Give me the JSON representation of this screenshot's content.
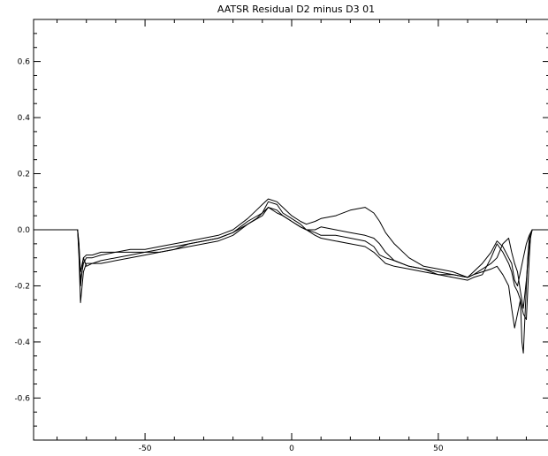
{
  "chart_data": {
    "type": "line",
    "title": "AATSR Residual D2 minus D3 01",
    "xlabel": "",
    "ylabel": "",
    "xlim": [
      -88,
      88
    ],
    "ylim": [
      -0.75,
      0.75
    ],
    "x_ticks_major": [
      -50,
      0,
      50
    ],
    "x_tick_labels": [
      "-50",
      "0",
      "50"
    ],
    "y_ticks_major": [
      -0.6,
      -0.4,
      -0.2,
      0.0,
      0.2,
      0.4,
      0.6
    ],
    "y_tick_labels": [
      "-0.6",
      "-0.4",
      "-0.2",
      "0.0",
      "0.2",
      "0.4",
      "0.6"
    ],
    "grid": false,
    "line_color": "#000000",
    "series": [
      {
        "x": [
          -88,
          -73,
          -72.5,
          -72,
          -71,
          -70,
          -68,
          -65,
          -60,
          -55,
          -50,
          -45,
          -40,
          -35,
          -30,
          -25,
          -20,
          -15,
          -10,
          -8,
          -5,
          -3,
          0,
          3,
          5,
          8,
          10,
          15,
          20,
          25,
          28,
          30,
          32,
          35,
          40,
          45,
          50,
          55,
          60,
          62,
          65,
          68,
          70,
          72,
          74,
          75,
          76,
          77,
          78,
          78.5,
          79,
          80,
          80.5,
          81,
          82,
          88
        ],
        "y": [
          0.0,
          0.0,
          -0.05,
          -0.2,
          -0.1,
          -0.13,
          -0.12,
          -0.11,
          -0.1,
          -0.09,
          -0.08,
          -0.08,
          -0.07,
          -0.06,
          -0.05,
          -0.04,
          -0.02,
          0.02,
          0.05,
          0.08,
          0.06,
          0.05,
          0.03,
          0.01,
          0.0,
          -0.01,
          -0.02,
          -0.02,
          -0.03,
          -0.04,
          -0.06,
          -0.09,
          -0.1,
          -0.11,
          -0.13,
          -0.14,
          -0.15,
          -0.16,
          -0.17,
          -0.16,
          -0.15,
          -0.14,
          -0.13,
          -0.16,
          -0.2,
          -0.28,
          -0.35,
          -0.3,
          -0.25,
          -0.4,
          -0.44,
          -0.2,
          -0.1,
          -0.03,
          0.0,
          0.0
        ]
      },
      {
        "x": [
          -88,
          -73,
          -72.5,
          -72,
          -71,
          -70,
          -68,
          -65,
          -60,
          -55,
          -50,
          -45,
          -40,
          -35,
          -30,
          -25,
          -20,
          -15,
          -10,
          -8,
          -5,
          -3,
          0,
          3,
          5,
          8,
          10,
          15,
          20,
          25,
          28,
          30,
          32,
          35,
          40,
          45,
          50,
          55,
          60,
          62,
          65,
          68,
          70,
          72,
          74,
          75,
          76,
          77,
          78,
          79,
          80,
          81,
          81.5,
          82,
          83,
          88
        ],
        "y": [
          0.0,
          0.0,
          -0.1,
          -0.26,
          -0.15,
          -0.12,
          -0.12,
          -0.12,
          -0.11,
          -0.1,
          -0.09,
          -0.08,
          -0.07,
          -0.05,
          -0.04,
          -0.03,
          -0.01,
          0.03,
          0.06,
          0.1,
          0.09,
          0.06,
          0.04,
          0.02,
          0.0,
          -0.02,
          -0.03,
          -0.04,
          -0.05,
          -0.06,
          -0.08,
          -0.1,
          -0.12,
          -0.13,
          -0.14,
          -0.15,
          -0.16,
          -0.17,
          -0.18,
          -0.17,
          -0.16,
          -0.1,
          -0.05,
          -0.08,
          -0.12,
          -0.15,
          -0.2,
          -0.22,
          -0.25,
          -0.3,
          -0.32,
          -0.1,
          -0.02,
          0.0,
          0.0,
          0.0
        ]
      },
      {
        "x": [
          -88,
          -73,
          -72.5,
          -72,
          -71,
          -70,
          -68,
          -65,
          -60,
          -55,
          -50,
          -45,
          -40,
          -35,
          -30,
          -25,
          -20,
          -15,
          -12,
          -10,
          -8,
          -5,
          -3,
          0,
          3,
          5,
          8,
          10,
          15,
          20,
          25,
          28,
          30,
          32,
          35,
          40,
          45,
          50,
          55,
          60,
          62,
          65,
          68,
          70,
          72,
          74,
          75,
          76,
          77,
          78,
          79,
          80,
          81,
          82,
          83,
          88
        ],
        "y": [
          0.0,
          0.0,
          -0.08,
          -0.18,
          -0.12,
          -0.1,
          -0.1,
          -0.09,
          -0.08,
          -0.07,
          -0.07,
          -0.06,
          -0.05,
          -0.04,
          -0.03,
          -0.02,
          0.0,
          0.04,
          0.07,
          0.09,
          0.11,
          0.1,
          0.08,
          0.05,
          0.03,
          0.02,
          0.03,
          0.04,
          0.05,
          0.07,
          0.08,
          0.06,
          0.03,
          -0.01,
          -0.05,
          -0.1,
          -0.13,
          -0.14,
          -0.15,
          -0.17,
          -0.16,
          -0.14,
          -0.12,
          -0.1,
          -0.05,
          -0.03,
          -0.08,
          -0.12,
          -0.15,
          -0.22,
          -0.28,
          -0.18,
          -0.05,
          0.0,
          0.0,
          0.0
        ]
      },
      {
        "x": [
          -88,
          -73,
          -72.5,
          -72,
          -71,
          -70,
          -68,
          -65,
          -60,
          -55,
          -50,
          -45,
          -40,
          -35,
          -30,
          -25,
          -20,
          -15,
          -12,
          -10,
          -8,
          -5,
          -3,
          0,
          3,
          5,
          8,
          10,
          15,
          20,
          25,
          28,
          30,
          32,
          35,
          40,
          45,
          50,
          55,
          60,
          62,
          65,
          68,
          70,
          72,
          74,
          75,
          76,
          77,
          78,
          79,
          80,
          81,
          82,
          83,
          88
        ],
        "y": [
          0.0,
          0.0,
          -0.06,
          -0.15,
          -0.1,
          -0.09,
          -0.09,
          -0.08,
          -0.08,
          -0.08,
          -0.08,
          -0.07,
          -0.06,
          -0.05,
          -0.04,
          -0.03,
          -0.01,
          0.02,
          0.04,
          0.06,
          0.08,
          0.07,
          0.05,
          0.03,
          0.01,
          0.0,
          0.0,
          0.01,
          0.0,
          -0.01,
          -0.02,
          -0.03,
          -0.05,
          -0.08,
          -0.11,
          -0.13,
          -0.14,
          -0.16,
          -0.16,
          -0.17,
          -0.15,
          -0.12,
          -0.08,
          -0.04,
          -0.06,
          -0.1,
          -0.12,
          -0.18,
          -0.2,
          -0.15,
          -0.1,
          -0.05,
          -0.02,
          0.0,
          0.0,
          0.0
        ]
      }
    ]
  }
}
